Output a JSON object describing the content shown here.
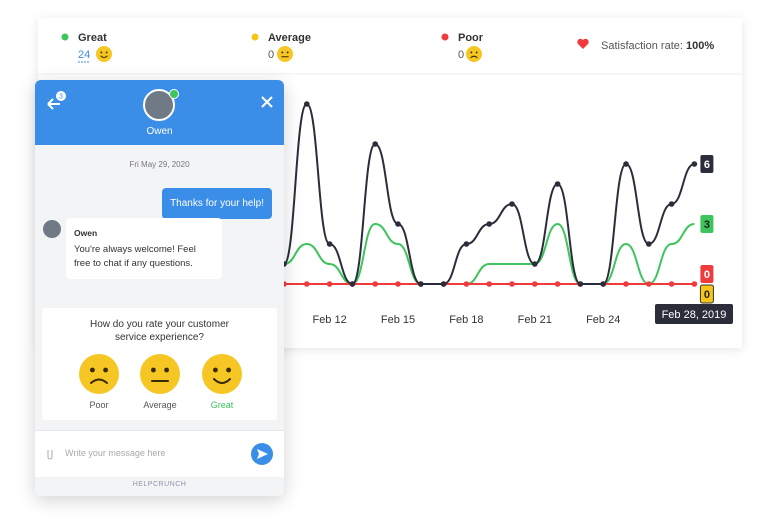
{
  "stats": {
    "counts": [
      24,
      0,
      0
    ],
    "satisfaction_label": "Satisfaction rate:",
    "satisfaction_value": "100%"
  },
  "chart_data": {
    "type": "line",
    "categories": [
      null,
      null,
      "Feb 12",
      null,
      null,
      "Feb 15",
      null,
      null,
      "Feb 18",
      null,
      null,
      "Feb 21",
      null,
      null,
      "Feb 24",
      null,
      null,
      null,
      null
    ],
    "series": [
      {
        "color": "#2b2d3a",
        "values": [
          1,
          9,
          2,
          0,
          7,
          3,
          0,
          0,
          2,
          3,
          4,
          1,
          5,
          0,
          0,
          6,
          2,
          4,
          6
        ]
      },
      {
        "name": "Great",
        "color": "#3dc45c",
        "values": [
          1,
          2,
          1,
          0,
          3,
          2,
          0,
          0,
          0,
          1,
          1,
          1,
          3,
          0,
          0,
          2,
          0,
          2,
          3
        ]
      },
      {
        "name": "Average",
        "color": "#f5c518",
        "values": [
          0,
          0,
          0,
          0,
          0,
          0,
          0,
          0,
          0,
          0,
          0,
          0,
          0,
          0,
          0,
          0,
          0,
          0,
          0
        ]
      },
      {
        "name": "Poor",
        "color": "#ef3b3b",
        "values": [
          0,
          0,
          0,
          0,
          0,
          0,
          0,
          0,
          0,
          0,
          0,
          0,
          0,
          0,
          0,
          0,
          0,
          0,
          0
        ]
      }
    ],
    "tooltip": "Feb 28, 2019"
  },
  "chat": {
    "badge": "3",
    "agent": "Owen",
    "date": "Fri May 29, 2020",
    "user_message": "Thanks for your help!",
    "reply_sender": "Owen",
    "reply_text": "You're always welcome! Feel free to chat if any questions.",
    "rating_question": "How do you rate your customer service experience?",
    "options": [
      "Poor",
      "Average",
      "Great"
    ],
    "input_placeholder": "Write your message here",
    "footer": "HELPCRUNCH"
  }
}
